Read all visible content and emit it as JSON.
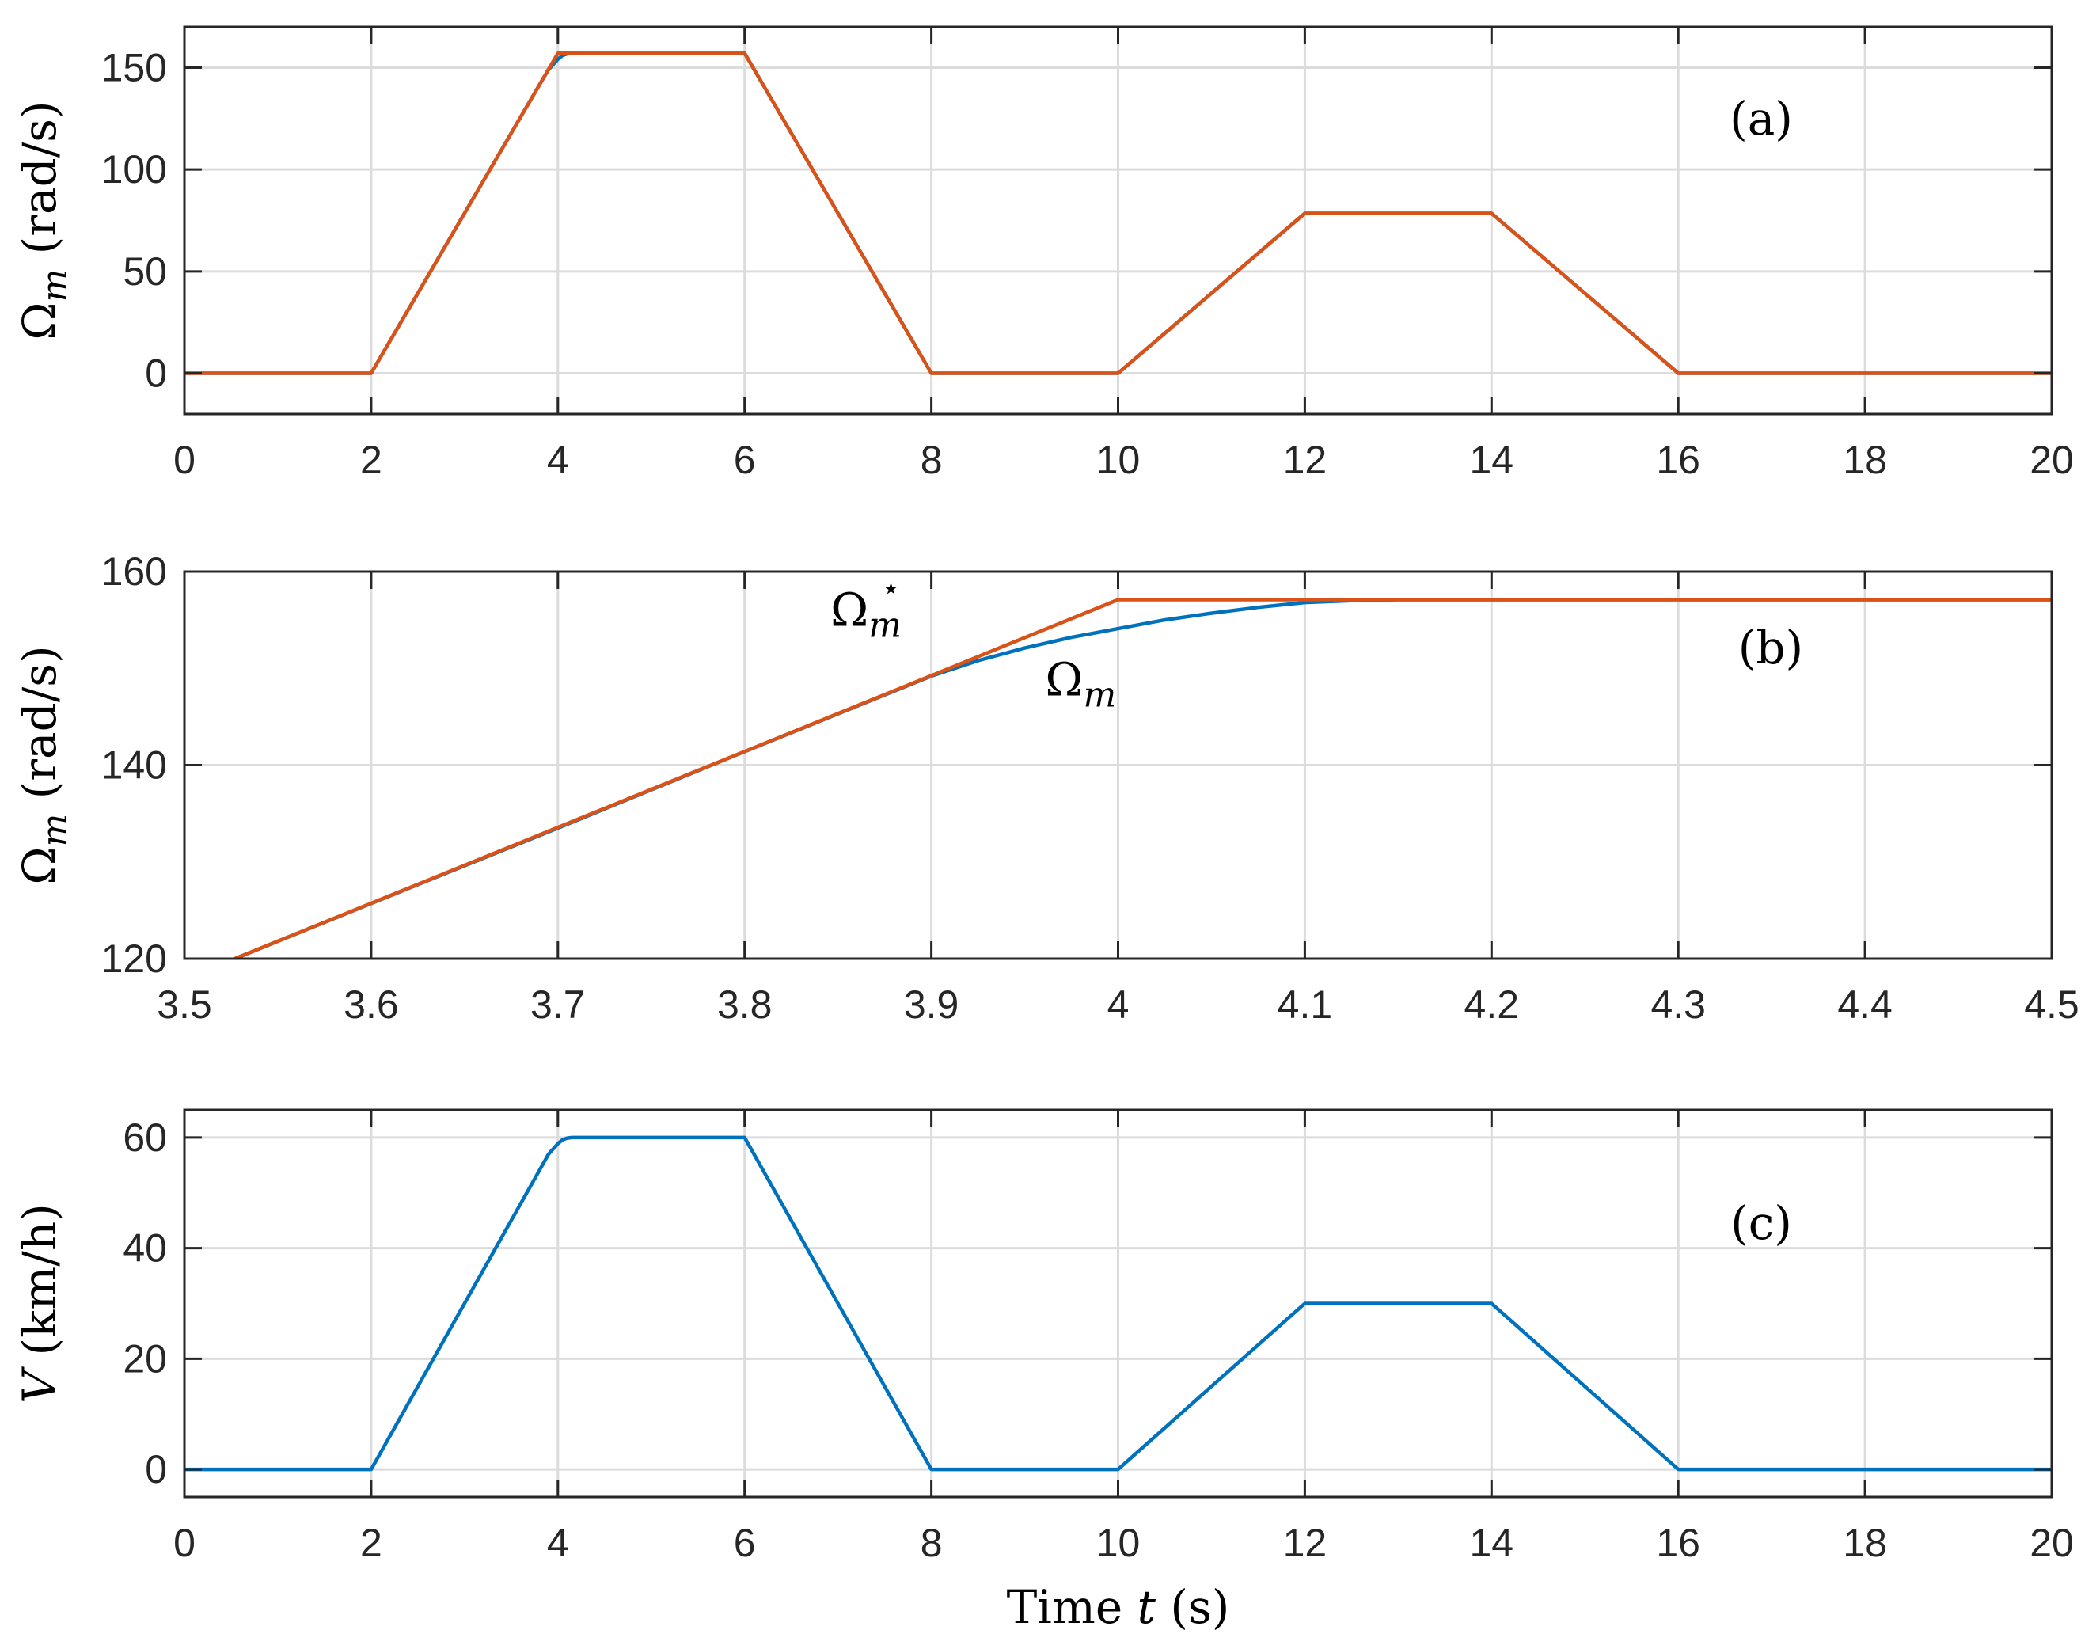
{
  "chart_data": [
    {
      "id": "a",
      "type": "line",
      "panel_label": "(a)",
      "ylabel": {
        "main": "Ω",
        "sub": "m",
        "unit": "(rad/s)"
      },
      "xlim": [
        0,
        20
      ],
      "ylim": [
        -20,
        170
      ],
      "xticks": [
        0,
        2,
        4,
        6,
        8,
        10,
        12,
        14,
        16,
        18,
        20
      ],
      "yticks": [
        0,
        50,
        100,
        150
      ],
      "grid": true,
      "series": [
        {
          "color": "#0072BD",
          "x": [
            0,
            2,
            3.5,
            3.8,
            3.9,
            4.0,
            4.05,
            4.1,
            4.15,
            6,
            8,
            10,
            12,
            14,
            16,
            20
          ],
          "y": [
            0,
            0,
            117.8,
            141.4,
            149.0,
            154.2,
            156.0,
            156.8,
            157.1,
            157.1,
            0,
            0,
            78.5,
            78.5,
            0,
            0
          ]
        },
        {
          "color": "#D95319",
          "x": [
            0,
            2,
            4,
            6,
            8,
            10,
            12,
            14,
            16,
            20
          ],
          "y": [
            0,
            0,
            157.1,
            157.1,
            0,
            0,
            78.5,
            78.5,
            0,
            0
          ]
        }
      ]
    },
    {
      "id": "b",
      "type": "line",
      "panel_label": "(b)",
      "ylabel": {
        "main": "Ω",
        "sub": "m",
        "unit": "(rad/s)"
      },
      "xlim": [
        3.5,
        4.5
      ],
      "ylim": [
        120,
        160
      ],
      "xticks": [
        3.5,
        3.6,
        3.7,
        3.8,
        3.9,
        4.0,
        4.1,
        4.2,
        4.3,
        4.4,
        4.5
      ],
      "xtick_labels": [
        "3.5",
        "3.6",
        "3.7",
        "3.8",
        "3.9",
        "4",
        "4.1",
        "4.2",
        "4.3",
        "4.4",
        "4.5"
      ],
      "yticks": [
        120,
        140,
        160
      ],
      "grid": true,
      "series": [
        {
          "color": "#0072BD",
          "x": [
            3.527,
            3.6,
            3.7,
            3.8,
            3.85,
            3.9,
            3.925,
            3.95,
            3.975,
            4.0,
            4.025,
            4.05,
            4.075,
            4.1,
            4.125,
            4.15,
            4.5
          ],
          "y": [
            120.0,
            125.7,
            133.5,
            141.4,
            145.3,
            149.2,
            150.8,
            152.1,
            153.2,
            154.1,
            155.0,
            155.7,
            156.3,
            156.8,
            157.0,
            157.1,
            157.1
          ]
        },
        {
          "color": "#D95319",
          "x": [
            3.527,
            4.0,
            4.5
          ],
          "y": [
            120.0,
            157.1,
            157.1
          ]
        }
      ],
      "annotations": [
        {
          "main": "Ω",
          "sub": "m",
          "sup": "⋆",
          "x": 3.865,
          "y": 154.4
        },
        {
          "main": "Ω",
          "sub": "m",
          "sup": "",
          "x": 3.98,
          "y": 147.2
        }
      ]
    },
    {
      "id": "c",
      "type": "line",
      "panel_label": "(c)",
      "ylabel": {
        "main": "V",
        "sub": "",
        "unit": "(km/h)"
      },
      "xlabel": {
        "text": "Time",
        "var": "t",
        "unit": "(s)"
      },
      "xlim": [
        0,
        20
      ],
      "ylim": [
        -5,
        65
      ],
      "xticks": [
        0,
        2,
        4,
        6,
        8,
        10,
        12,
        14,
        16,
        18,
        20
      ],
      "yticks": [
        0,
        20,
        40,
        60
      ],
      "grid": true,
      "series": [
        {
          "color": "#0072BD",
          "x": [
            0,
            2,
            3.5,
            3.8,
            3.9,
            4.0,
            4.05,
            4.1,
            4.15,
            6,
            8,
            10,
            12,
            14,
            16,
            20
          ],
          "y": [
            0,
            0,
            45.0,
            54.0,
            57.0,
            58.9,
            59.6,
            59.9,
            60,
            60,
            0,
            0,
            30,
            30,
            0,
            0
          ]
        }
      ]
    }
  ]
}
